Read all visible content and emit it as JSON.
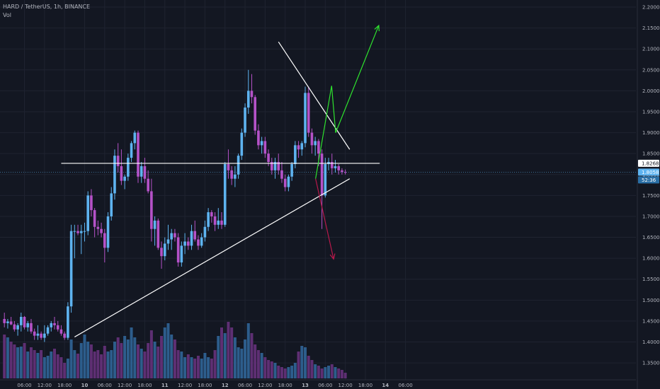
{
  "header": {
    "symbol": "HARD / TetherUS, 1h, BINANCE",
    "volume_label": "Vol"
  },
  "colors": {
    "background": "#131722",
    "grid": "#1f2330",
    "up": "#5eb3f0",
    "down": "#b552c8",
    "vol_up": "#2d5d8c",
    "vol_down": "#5e2f73",
    "trendline": "#ffffff",
    "bull_projection": "#2ee32e",
    "bear_projection": "#b8194b",
    "axis_text": "#b2b5be"
  },
  "price_tags": {
    "level": "1.8268",
    "last": "1.8058",
    "countdown": "52:36"
  },
  "chart_data": {
    "type": "candlestick",
    "title": "HARD / TetherUS, 1h, BINANCE",
    "y_ticks": [
      "2.2000",
      "2.1500",
      "2.1000",
      "2.0500",
      "2.0000",
      "1.9500",
      "1.9000",
      "1.8500",
      "1.8000",
      "1.7500",
      "1.7000",
      "1.6500",
      "1.6000",
      "1.5500",
      "1.5000",
      "1.4500",
      "1.4000",
      "1.3500"
    ],
    "x_ticks": [
      "06:00",
      "12:00",
      "18:00",
      "10",
      "06:00",
      "12:00",
      "18:00",
      "11",
      "12:00",
      "18:00",
      "12",
      "06:00",
      "12:00",
      "18:00",
      "13",
      "06:00",
      "12:00",
      "18:00",
      "14",
      "06:00"
    ],
    "ylim": [
      1.3333,
      2.2085
    ],
    "bars_per_day": 24,
    "candles": [
      [
        1.455,
        1.47,
        1.435,
        1.445
      ],
      [
        1.445,
        1.455,
        1.432,
        1.449
      ],
      [
        1.449,
        1.46,
        1.44,
        1.442
      ],
      [
        1.442,
        1.45,
        1.425,
        1.43
      ],
      [
        1.43,
        1.445,
        1.415,
        1.44
      ],
      [
        1.44,
        1.47,
        1.425,
        1.46
      ],
      [
        1.46,
        1.462,
        1.43,
        1.435
      ],
      [
        1.435,
        1.45,
        1.425,
        1.445
      ],
      [
        1.445,
        1.455,
        1.42,
        1.425
      ],
      [
        1.425,
        1.432,
        1.405,
        1.415
      ],
      [
        1.415,
        1.44,
        1.405,
        1.42
      ],
      [
        1.42,
        1.425,
        1.405,
        1.41
      ],
      [
        1.41,
        1.44,
        1.4,
        1.42
      ],
      [
        1.42,
        1.44,
        1.415,
        1.435
      ],
      [
        1.435,
        1.45,
        1.425,
        1.445
      ],
      [
        1.445,
        1.46,
        1.43,
        1.44
      ],
      [
        1.44,
        1.45,
        1.425,
        1.43
      ],
      [
        1.43,
        1.44,
        1.415,
        1.42
      ],
      [
        1.42,
        1.425,
        1.405,
        1.41
      ],
      [
        1.41,
        1.495,
        1.405,
        1.485
      ],
      [
        1.485,
        1.68,
        1.47,
        1.665
      ],
      [
        1.665,
        1.68,
        1.6,
        1.665
      ],
      [
        1.665,
        1.68,
        1.655,
        1.66
      ],
      [
        1.66,
        1.68,
        1.61,
        1.665
      ],
      [
        1.665,
        1.685,
        1.64,
        1.665
      ],
      [
        1.665,
        1.76,
        1.655,
        1.75
      ],
      [
        1.75,
        1.765,
        1.7,
        1.715
      ],
      [
        1.715,
        1.72,
        1.65,
        1.675
      ],
      [
        1.675,
        1.69,
        1.655,
        1.67
      ],
      [
        1.67,
        1.685,
        1.65,
        1.66
      ],
      [
        1.66,
        1.67,
        1.59,
        1.625
      ],
      [
        1.625,
        1.71,
        1.615,
        1.7
      ],
      [
        1.7,
        1.77,
        1.69,
        1.755
      ],
      [
        1.755,
        1.86,
        1.74,
        1.845
      ],
      [
        1.845,
        1.875,
        1.805,
        1.82
      ],
      [
        1.82,
        1.86,
        1.775,
        1.785
      ],
      [
        1.785,
        1.8,
        1.765,
        1.795
      ],
      [
        1.795,
        1.85,
        1.785,
        1.84
      ],
      [
        1.84,
        1.88,
        1.83,
        1.875
      ],
      [
        1.875,
        1.905,
        1.86,
        1.9
      ],
      [
        1.9,
        1.905,
        1.78,
        1.795
      ],
      [
        1.795,
        1.83,
        1.78,
        1.82
      ],
      [
        1.82,
        1.84,
        1.78,
        1.79
      ],
      [
        1.79,
        1.81,
        1.755,
        1.76
      ],
      [
        1.76,
        1.79,
        1.64,
        1.67
      ],
      [
        1.67,
        1.7,
        1.63,
        1.69
      ],
      [
        1.69,
        1.695,
        1.62,
        1.625
      ],
      [
        1.625,
        1.64,
        1.575,
        1.605
      ],
      [
        1.605,
        1.65,
        1.595,
        1.635
      ],
      [
        1.635,
        1.68,
        1.62,
        1.645
      ],
      [
        1.645,
        1.67,
        1.62,
        1.66
      ],
      [
        1.66,
        1.67,
        1.64,
        1.65
      ],
      [
        1.65,
        1.66,
        1.58,
        1.59
      ],
      [
        1.59,
        1.64,
        1.58,
        1.63
      ],
      [
        1.63,
        1.66,
        1.61,
        1.64
      ],
      [
        1.64,
        1.65,
        1.62,
        1.63
      ],
      [
        1.63,
        1.68,
        1.62,
        1.665
      ],
      [
        1.665,
        1.69,
        1.64,
        1.645
      ],
      [
        1.645,
        1.655,
        1.62,
        1.63
      ],
      [
        1.63,
        1.66,
        1.625,
        1.65
      ],
      [
        1.65,
        1.69,
        1.64,
        1.675
      ],
      [
        1.675,
        1.72,
        1.665,
        1.71
      ],
      [
        1.71,
        1.715,
        1.685,
        1.7
      ],
      [
        1.7,
        1.71,
        1.665,
        1.68
      ],
      [
        1.68,
        1.72,
        1.67,
        1.69
      ],
      [
        1.69,
        1.71,
        1.67,
        1.68
      ],
      [
        1.68,
        1.83,
        1.675,
        1.825
      ],
      [
        1.825,
        1.86,
        1.79,
        1.81
      ],
      [
        1.81,
        1.82,
        1.775,
        1.79
      ],
      [
        1.79,
        1.82,
        1.77,
        1.8
      ],
      [
        1.8,
        1.85,
        1.79,
        1.845
      ],
      [
        1.845,
        1.91,
        1.835,
        1.9
      ],
      [
        1.9,
        1.97,
        1.89,
        1.96
      ],
      [
        1.96,
        2.05,
        1.945,
        2.0
      ],
      [
        2.0,
        2.04,
        1.97,
        1.985
      ],
      [
        1.985,
        1.99,
        1.895,
        1.905
      ],
      [
        1.905,
        1.92,
        1.86,
        1.87
      ],
      [
        1.87,
        1.89,
        1.85,
        1.88
      ],
      [
        1.88,
        1.89,
        1.84,
        1.85
      ],
      [
        1.85,
        1.86,
        1.82,
        1.83
      ],
      [
        1.83,
        1.84,
        1.8,
        1.81
      ],
      [
        1.81,
        1.84,
        1.79,
        1.83
      ],
      [
        1.83,
        1.85,
        1.8,
        1.81
      ],
      [
        1.81,
        1.83,
        1.78,
        1.79
      ],
      [
        1.79,
        1.8,
        1.76,
        1.77
      ],
      [
        1.77,
        1.8,
        1.76,
        1.795
      ],
      [
        1.795,
        1.83,
        1.785,
        1.825
      ],
      [
        1.825,
        1.88,
        1.815,
        1.87
      ],
      [
        1.87,
        1.88,
        1.84,
        1.86
      ],
      [
        1.86,
        1.88,
        1.845,
        1.875
      ],
      [
        1.875,
        2.01,
        1.865,
        1.995
      ],
      [
        1.995,
        2.01,
        1.89,
        1.9
      ],
      [
        1.9,
        1.91,
        1.85,
        1.87
      ],
      [
        1.87,
        1.89,
        1.845,
        1.88
      ],
      [
        1.88,
        1.885,
        1.82,
        1.85
      ],
      [
        1.85,
        1.86,
        1.67,
        1.75
      ],
      [
        1.75,
        1.84,
        1.745,
        1.825
      ],
      [
        1.825,
        1.84,
        1.81,
        1.83
      ],
      [
        1.83,
        1.85,
        1.8,
        1.815
      ],
      [
        1.815,
        1.835,
        1.805,
        1.82
      ],
      [
        1.82,
        1.825,
        1.8,
        1.81
      ],
      [
        1.81,
        1.815,
        1.8,
        1.806
      ],
      [
        1.806,
        1.812,
        1.8,
        1.8058
      ]
    ],
    "volume": [
      62,
      58,
      52,
      48,
      44,
      45,
      50,
      38,
      44,
      40,
      36,
      40,
      30,
      32,
      38,
      42,
      34,
      30,
      22,
      28,
      55,
      40,
      35,
      50,
      62,
      52,
      48,
      38,
      40,
      34,
      46,
      38,
      40,
      52,
      58,
      50,
      60,
      55,
      72,
      58,
      48,
      42,
      38,
      50,
      68,
      52,
      45,
      60,
      72,
      78,
      62,
      55,
      40,
      38,
      30,
      34,
      30,
      28,
      32,
      28,
      36,
      30,
      28,
      40,
      60,
      72,
      64,
      80,
      72,
      58,
      44,
      42,
      55,
      78,
      64,
      48,
      40,
      36,
      30,
      26,
      24,
      22,
      18,
      16,
      14,
      16,
      18,
      22,
      38,
      46,
      44,
      32,
      26,
      20,
      18,
      14,
      16,
      18,
      20,
      16,
      14,
      12,
      8
    ],
    "volume_max": 92,
    "trendlines": [
      {
        "name": "support",
        "points": [
          [
            21.0,
            1.412
          ],
          [
            103.3,
            1.79
          ]
        ]
      },
      {
        "name": "resistance",
        "points": [
          [
            82.0,
            2.117
          ],
          [
            103.3,
            1.86
          ]
        ]
      },
      {
        "name": "level",
        "points": [
          [
            17.0,
            1.8268
          ],
          [
            112.3,
            1.8268
          ]
        ]
      }
    ],
    "projections": [
      {
        "name": "bull",
        "points": [
          [
            93.1,
            1.79
          ],
          [
            97.9,
            2.012
          ],
          [
            99.1,
            1.9
          ],
          [
            112.0,
            2.156
          ]
        ]
      },
      {
        "name": "bear",
        "points": [
          [
            93.1,
            1.79
          ],
          [
            98.5,
            1.598
          ]
        ]
      }
    ]
  }
}
